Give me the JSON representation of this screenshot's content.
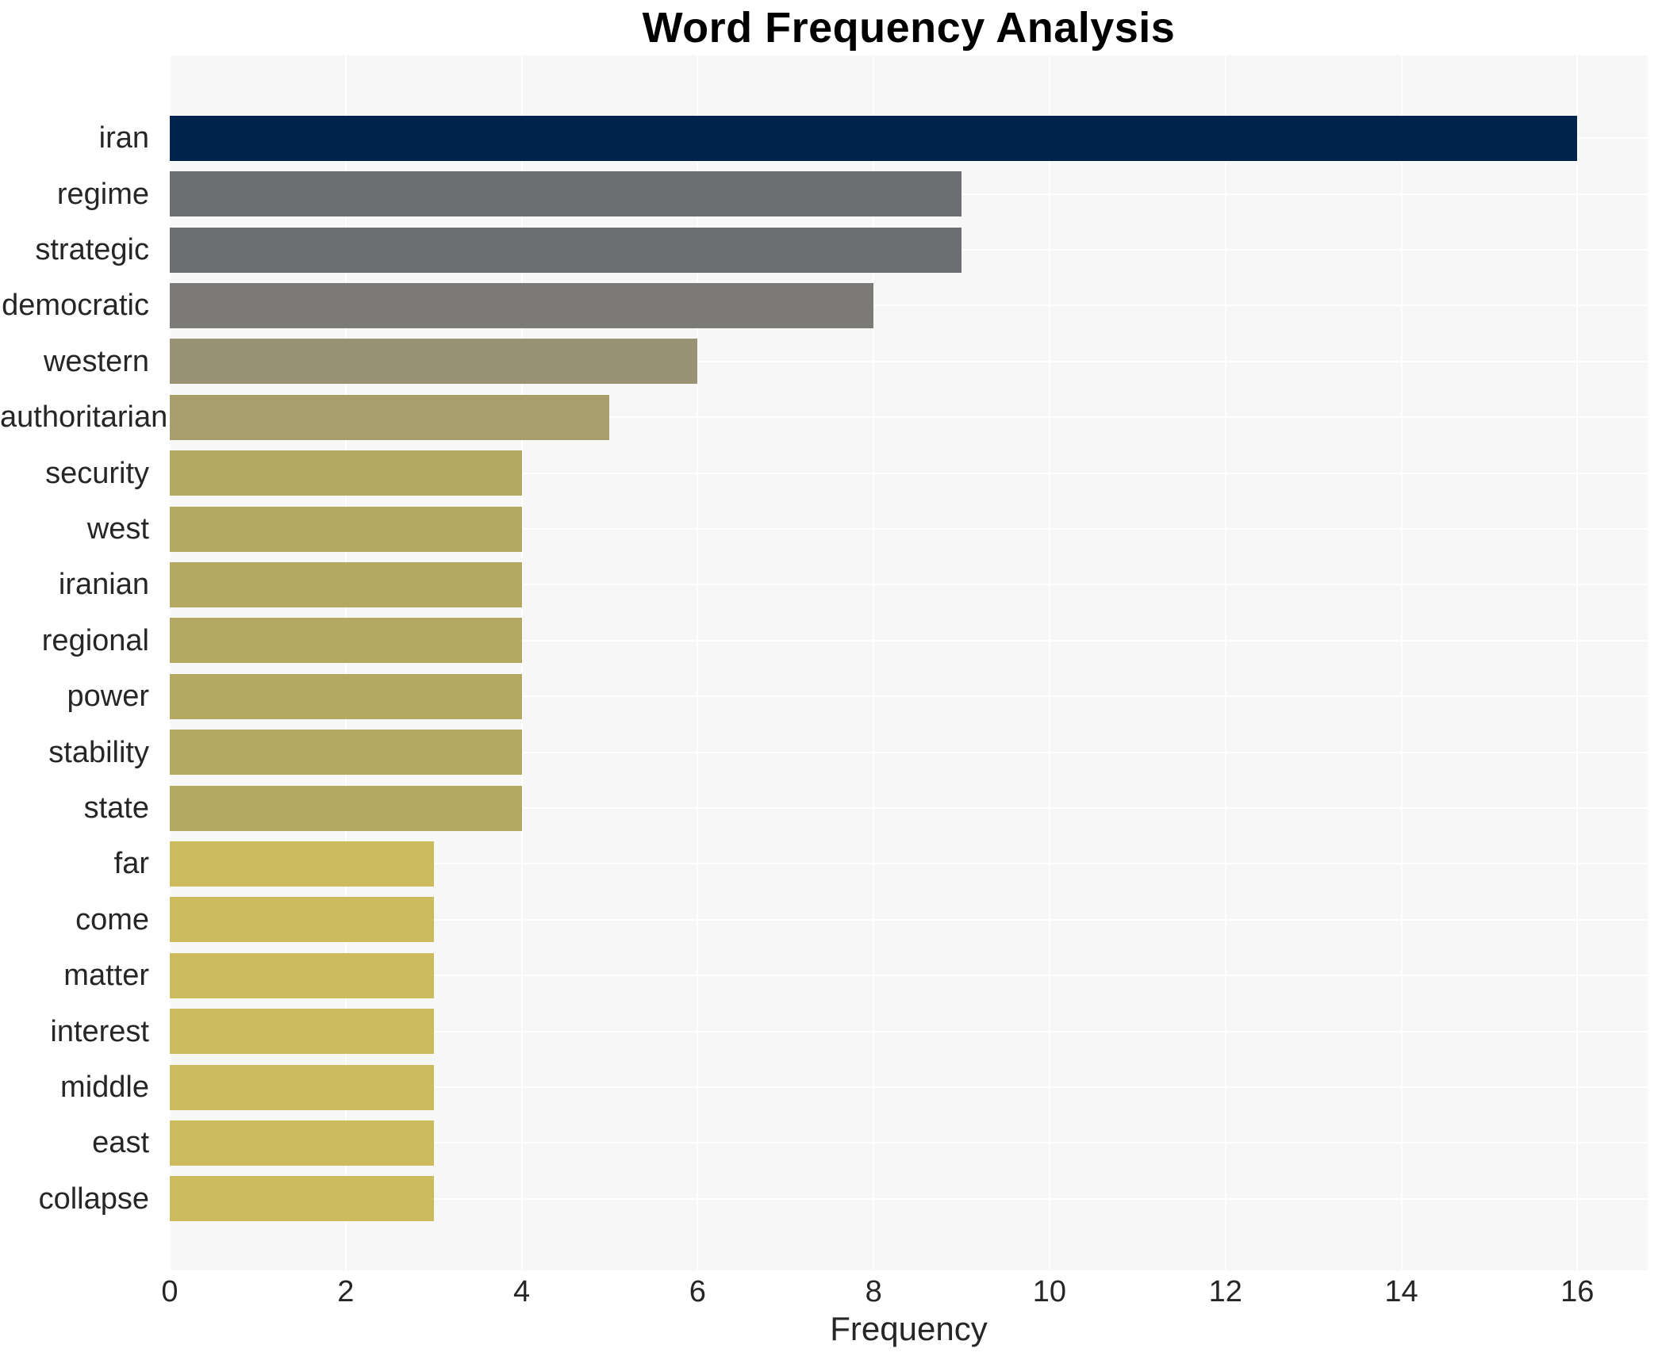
{
  "chart_data": {
    "type": "bar",
    "orientation": "horizontal",
    "title": "Word Frequency Analysis",
    "xlabel": "Frequency",
    "ylabel": "",
    "categories": [
      "iran",
      "regime",
      "strategic",
      "democratic",
      "western",
      "authoritarian",
      "security",
      "west",
      "iranian",
      "regional",
      "power",
      "stability",
      "state",
      "far",
      "come",
      "matter",
      "interest",
      "middle",
      "east",
      "collapse"
    ],
    "values": [
      16,
      9,
      9,
      8,
      6,
      5,
      4,
      4,
      4,
      4,
      4,
      4,
      4,
      3,
      3,
      3,
      3,
      3,
      3,
      3
    ],
    "bar_colors": [
      "#00234d",
      "#6c6e71",
      "#6c6e71",
      "#7b7a77",
      "#999275",
      "#a89e6b",
      "#b3a962",
      "#b3a962",
      "#b3a962",
      "#b3a962",
      "#b3a962",
      "#b3a962",
      "#b3a962",
      "#cbba5e",
      "#cbba5e",
      "#cbba5e",
      "#cbba5e",
      "#cbba5e",
      "#cbba5e",
      "#cbba5e"
    ],
    "xticks": [
      0,
      2,
      4,
      6,
      8,
      10,
      12,
      14,
      16
    ],
    "xlim": [
      0,
      16.8
    ],
    "grid": true,
    "grid_color": "#ffffff",
    "plot_background": "#f7f7f7",
    "text_color": "#262626",
    "title_color": "#000000",
    "legend": "none"
  }
}
